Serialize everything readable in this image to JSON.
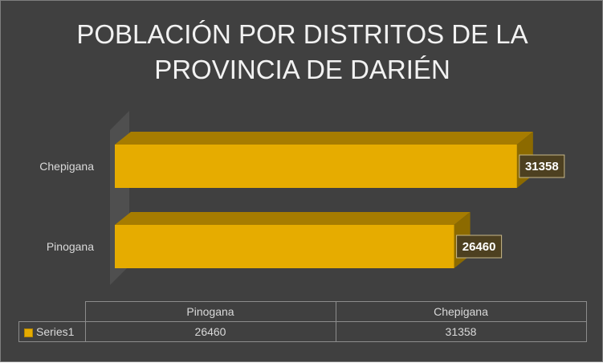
{
  "chart_data": {
    "type": "bar",
    "orientation": "horizontal",
    "three_d": true,
    "title": "POBLACIÓN POR DISTRITOS DE LA PROVINCIA DE DARIÉN",
    "title_lines": [
      "POBLACIÓN POR DISTRITOS DE LA",
      "PROVINCIA DE DARIÉN"
    ],
    "categories": [
      "Pinogana",
      "Chepigana"
    ],
    "series": [
      {
        "name": "Series1",
        "values": [
          26460,
          31358
        ],
        "color": "#e6ac00"
      }
    ],
    "data_labels": [
      "26460",
      "31358"
    ],
    "xlim": [
      0,
      35000
    ],
    "grid": false,
    "legend": "data-table",
    "background_color": "#404040",
    "text_color": "#d9d9d9"
  }
}
